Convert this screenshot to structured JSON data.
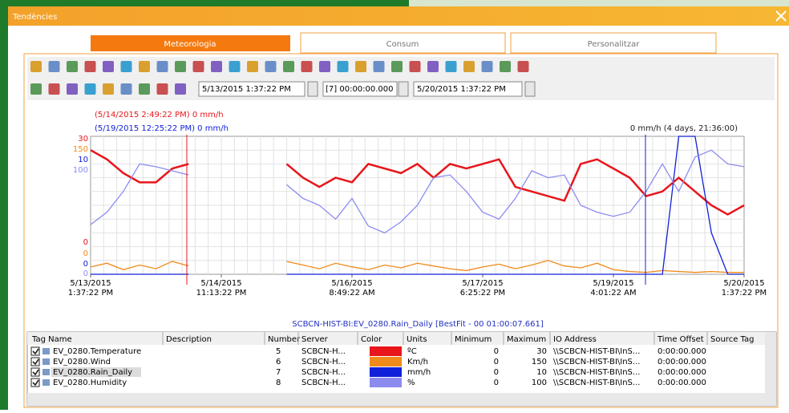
{
  "window": {
    "title": "Tendències"
  },
  "tabs": [
    "Meteorologia",
    "Consum",
    "Personalitzar"
  ],
  "toolbar": {
    "start_time": "5/13/2015  1:37:22 PM",
    "duration": "[7] 00:00:00.000",
    "end_time": "5/20/2015  1:37:22 PM"
  },
  "cursors": {
    "red_label": "(5/14/2015 2:49:22 PM) 0 mm/h",
    "blue_label": "(5/19/2015 12:25:22 PM) 0 mm/h",
    "delta_label": "0 mm/h (4 days, 21:36:00)"
  },
  "chart_data": {
    "type": "line",
    "x_ticks": [
      {
        "date": "5/13/2015",
        "time": "1:37:22 PM"
      },
      {
        "date": "5/14/2015",
        "time": "11:13:22 PM"
      },
      {
        "date": "5/16/2015",
        "time": "8:49:22 AM"
      },
      {
        "date": "5/17/2015",
        "time": "6:25:22 PM"
      },
      {
        "date": "5/19/2015",
        "time": "4:01:22 AM"
      },
      {
        "date": "5/20/2015",
        "time": "1:37:22 PM"
      }
    ],
    "series": [
      {
        "name": "EV_0280.Temperature",
        "color": "#e8151b",
        "ylim": [
          0,
          30
        ],
        "values": [
          27,
          25,
          22,
          20,
          20,
          23,
          24,
          null,
          null,
          null,
          null,
          null,
          24,
          21,
          19,
          21,
          20,
          24,
          23,
          22,
          24,
          21,
          24,
          23,
          24,
          25,
          19,
          18,
          17,
          16,
          24,
          25,
          23,
          21,
          17,
          18,
          21,
          18,
          15,
          13,
          15
        ]
      },
      {
        "name": "EV_0280.Wind",
        "color": "#f08a1a",
        "ylim": [
          0,
          150
        ],
        "values": [
          8,
          12,
          5,
          10,
          6,
          14,
          9,
          null,
          null,
          null,
          null,
          null,
          14,
          10,
          6,
          12,
          8,
          5,
          10,
          7,
          12,
          9,
          6,
          4,
          8,
          11,
          6,
          10,
          15,
          9,
          7,
          12,
          5,
          3,
          2,
          4,
          3,
          2,
          3,
          2,
          2
        ]
      },
      {
        "name": "EV_0280.Rain_Daily",
        "color": "#1020d8",
        "ylim": [
          0,
          10
        ],
        "values": [
          0,
          0,
          0,
          0,
          0,
          0,
          0,
          null,
          null,
          null,
          null,
          null,
          0,
          0,
          0,
          0,
          0,
          0,
          0,
          0,
          0,
          0,
          0,
          0,
          0,
          0,
          0,
          0,
          0,
          0,
          0,
          0,
          0,
          0,
          0,
          0,
          10,
          10,
          3,
          0,
          0
        ]
      },
      {
        "name": "EV_0280.Humidity",
        "color": "#8c8cf0",
        "ylim": [
          0,
          100
        ],
        "values": [
          36,
          45,
          60,
          80,
          78,
          75,
          72,
          null,
          null,
          null,
          null,
          null,
          65,
          55,
          50,
          40,
          55,
          35,
          30,
          38,
          50,
          70,
          72,
          60,
          45,
          40,
          55,
          75,
          70,
          72,
          50,
          45,
          42,
          45,
          60,
          80,
          60,
          85,
          90,
          80,
          78
        ]
      }
    ],
    "caption": "SCBCN-HIST-BI:EV_0280.Rain_Daily [BestFit - 00 01:00:07.661]"
  },
  "table": {
    "headers": [
      "Tag Name",
      "Description",
      "Number",
      "Server",
      "Color",
      "Units",
      "Minimum",
      "Maximum",
      "IO Address",
      "Time Offset",
      "Source Tag"
    ],
    "rows": [
      {
        "tag": "EV_0280.Temperature",
        "number": "5",
        "server": "SCBCN-H...",
        "units": "ºC",
        "minimum": "0",
        "maximum": "30",
        "io": "\\\\SCBCN-HIST-BI\\InS...",
        "offset": "0:00:00.000"
      },
      {
        "tag": "EV_0280.Wind",
        "number": "6",
        "server": "SCBCN-H...",
        "units": "Km/h",
        "minimum": "0",
        "maximum": "150",
        "io": "\\\\SCBCN-HIST-BI\\InS...",
        "offset": "0:00:00.000"
      },
      {
        "tag": "EV_0280.Rain_Daily",
        "number": "7",
        "server": "SCBCN-H...",
        "units": "mm/h",
        "minimum": "0",
        "maximum": "10",
        "io": "\\\\SCBCN-HIST-BI\\InS...",
        "offset": "0:00:00.000"
      },
      {
        "tag": "EV_0280.Humidity",
        "number": "8",
        "server": "SCBCN-H...",
        "units": "%",
        "minimum": "0",
        "maximum": "100",
        "io": "\\\\SCBCN-HIST-BI\\InS...",
        "offset": "0:00:00.000"
      }
    ]
  }
}
